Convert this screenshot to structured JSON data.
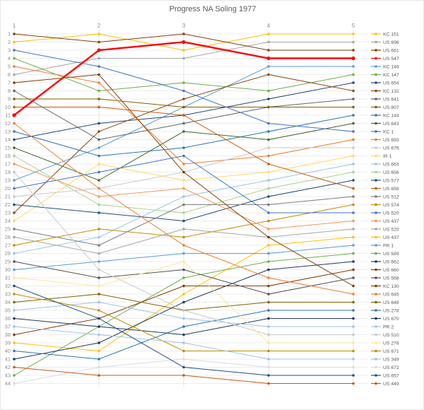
{
  "title": "Progress NA Soling 1977",
  "colors": {
    "background": "#FFFFFF",
    "border": "#E6E6E6",
    "grid_h": "#ECECEC",
    "grid_v": "#E3E3E3",
    "axis_text": "#8C8C8C",
    "title_text": "#595959",
    "legend_text": "#595959",
    "highlight": "#FF0000"
  },
  "chart_data": {
    "type": "line",
    "subtype": "bump-rank-chart",
    "title": "Progress NA Soling 1977",
    "xlabel": "",
    "ylabel": "",
    "x": [
      1,
      2,
      3,
      4,
      5
    ],
    "x_axis_position": "top",
    "y_axis": {
      "min": 1,
      "max": 44,
      "inverted": true,
      "tick_step": 1
    },
    "grid": true,
    "legend_position": "right",
    "highlight_series": "US 547",
    "series": [
      {
        "name": "KC 151",
        "color": "#FFC000",
        "values": [
          2,
          1,
          3,
          1,
          1
        ]
      },
      {
        "name": "US 696",
        "color": "#A5A5A5",
        "values": [
          6,
          4,
          4,
          2,
          2
        ]
      },
      {
        "name": "US 661",
        "color": "#843C0C",
        "values": [
          1,
          2,
          1,
          3,
          3
        ]
      },
      {
        "name": "US 547",
        "color": "#FF0000",
        "values": [
          11,
          3,
          2,
          4,
          4
        ]
      },
      {
        "name": "KC 146",
        "color": "#5B9BD5",
        "values": [
          19,
          15,
          10,
          5,
          5
        ]
      },
      {
        "name": "KC 147",
        "color": "#70AD47",
        "values": [
          4,
          8,
          7,
          8,
          6
        ]
      },
      {
        "name": "US 654",
        "color": "#264478",
        "values": [
          14,
          12,
          11,
          9,
          7
        ]
      },
      {
        "name": "KC 132",
        "color": "#8C4A17",
        "values": [
          23,
          13,
          9,
          6,
          8
        ]
      },
      {
        "name": "US 641",
        "color": "#636363",
        "values": [
          8,
          14,
          12,
          10,
          9
        ]
      },
      {
        "name": "US 807",
        "color": "#7F6000",
        "values": [
          9,
          9,
          10,
          10,
          10
        ]
      },
      {
        "name": "KC 144",
        "color": "#2E75B6",
        "values": [
          13,
          16,
          15,
          13,
          11
        ]
      },
      {
        "name": "US 643",
        "color": "#43682B",
        "values": [
          15,
          19,
          13,
          14,
          12
        ]
      },
      {
        "name": "KC 1",
        "color": "#4472C4",
        "values": [
          3,
          5,
          8,
          12,
          13
        ]
      },
      {
        "name": "US 693",
        "color": "#ED7D31",
        "values": [
          5,
          7,
          17,
          16,
          14
        ]
      },
      {
        "name": "US 676",
        "color": "#C9C9C9",
        "values": [
          21,
          20,
          18,
          15,
          15
        ]
      },
      {
        "name": "IR 1",
        "color": "#FFD966",
        "values": [
          24,
          17,
          19,
          18,
          16
        ]
      },
      {
        "name": "US 663",
        "color": "#9DC3E6",
        "values": [
          28,
          26,
          21,
          19,
          17
        ]
      },
      {
        "name": "US 656",
        "color": "#A9D18E",
        "values": [
          16,
          22,
          23,
          20,
          18
        ]
      },
      {
        "name": "US 577",
        "color": "#1F4E79",
        "values": [
          22,
          23,
          24,
          21,
          19
        ]
      },
      {
        "name": "US 658",
        "color": "#C55A11",
        "values": [
          10,
          10,
          11,
          17,
          20
        ]
      },
      {
        "name": "US 512",
        "color": "#7B7B7B",
        "values": [
          25,
          27,
          22,
          22,
          21
        ]
      },
      {
        "name": "US 574",
        "color": "#BF8F00",
        "values": [
          27,
          25,
          26,
          24,
          22
        ]
      },
      {
        "name": "US 520",
        "color": "#4472C4",
        "values": [
          20,
          18,
          16,
          23,
          23
        ]
      },
      {
        "name": "US 437",
        "color": "#F1975A",
        "values": [
          17,
          21,
          20,
          25,
          24
        ]
      },
      {
        "name": "US 520",
        "color": "#A6A6A6",
        "values": [
          26,
          28,
          25,
          26,
          25
        ]
      },
      {
        "name": "US 437",
        "color": "#FFC000",
        "values": [
          39,
          40,
          33,
          27,
          26
        ]
      },
      {
        "name": "PR 1",
        "color": "#5B9BD5",
        "values": [
          30,
          29,
          28,
          28,
          27
        ]
      },
      {
        "name": "US 589",
        "color": "#70AD47",
        "values": [
          43,
          37,
          31,
          29,
          28
        ]
      },
      {
        "name": "US 662",
        "color": "#203864",
        "values": [
          41,
          39,
          34,
          30,
          29
        ]
      },
      {
        "name": "US 660",
        "color": "#823B0B",
        "values": [
          38,
          36,
          32,
          32,
          30
        ]
      },
      {
        "name": "US 568",
        "color": "#525252",
        "values": [
          29,
          31,
          30,
          33,
          31
        ]
      },
      {
        "name": "KC 130",
        "color": "#833C00",
        "values": [
          7,
          6,
          18,
          26,
          32
        ]
      },
      {
        "name": "US 645",
        "color": "#ED7D31",
        "values": [
          12,
          20,
          27,
          31,
          33
        ]
      },
      {
        "name": "US 648",
        "color": "#7F6000",
        "values": [
          34,
          33,
          35,
          34,
          34
        ]
      },
      {
        "name": "US 278",
        "color": "#2E75B6",
        "values": [
          40,
          41,
          37,
          35,
          35
        ]
      },
      {
        "name": "US 670",
        "color": "#203864",
        "values": [
          36,
          37,
          38,
          36,
          36
        ]
      },
      {
        "name": "PR 2",
        "color": "#9DC3E6",
        "values": [
          35,
          34,
          36,
          37,
          37
        ]
      },
      {
        "name": "US 510",
        "color": "#C9C9C9",
        "values": [
          18,
          30,
          35,
          38,
          38
        ]
      },
      {
        "name": "US 278",
        "color": "#FFE699",
        "values": [
          31,
          32,
          29,
          39,
          39
        ]
      },
      {
        "name": "US 671",
        "color": "#BF8F00",
        "values": [
          33,
          35,
          40,
          40,
          40
        ]
      },
      {
        "name": "US 349",
        "color": "#9DC3E6",
        "values": [
          37,
          38,
          39,
          41,
          41
        ]
      },
      {
        "name": "US 672",
        "color": "#DBDBDB",
        "values": [
          44,
          42,
          41,
          42,
          42
        ]
      },
      {
        "name": "US 657",
        "color": "#1F4E79",
        "values": [
          32,
          36,
          42,
          43,
          43
        ]
      },
      {
        "name": "US 449",
        "color": "#C55A11",
        "values": [
          42,
          43,
          43,
          44,
          44
        ]
      }
    ]
  }
}
